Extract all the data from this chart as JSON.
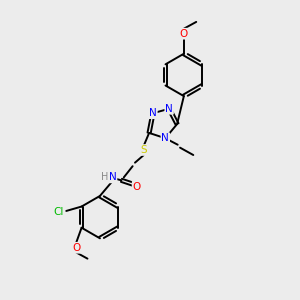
{
  "background_color": "#ececec",
  "bond_color": "#000000",
  "atom_colors": {
    "N": "#0000ff",
    "O": "#ff0000",
    "S": "#cccc00",
    "Cl": "#00bb00",
    "H": "#888888",
    "C": "#000000"
  },
  "figsize": [
    3.0,
    3.0
  ],
  "dpi": 100,
  "lw": 1.4,
  "fs": 7.5
}
